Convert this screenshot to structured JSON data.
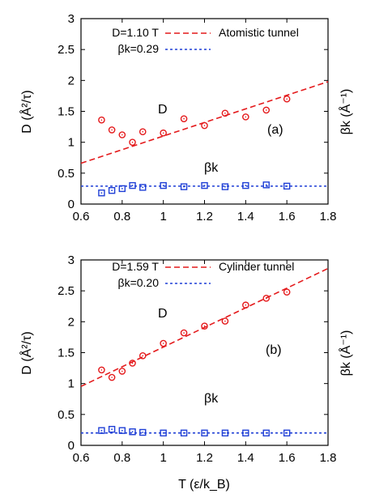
{
  "colors": {
    "red": "#e41a1c",
    "blue": "#1f3fd6",
    "axis": "#000000"
  },
  "chart_data": [
    {
      "type": "scatter",
      "panel_label": "(a)",
      "xlim": [
        0.6,
        1.8
      ],
      "ylim": [
        0,
        3
      ],
      "x_ticks": [
        "0.6",
        "0.8",
        "1",
        "1.2",
        "1.4",
        "1.6",
        "1.8"
      ],
      "y_ticks": [
        "0",
        "0.5",
        "1",
        "1.5",
        "2",
        "2.5",
        "3"
      ],
      "ylabel": "D (Å²/τ)",
      "y2label": "βk (Å⁻¹)",
      "xlabel": "",
      "grid": false,
      "legend_placement": "top",
      "annotations": {
        "D": "D",
        "beta_k": "βk"
      },
      "series": [
        {
          "name": "D",
          "marker": "circle",
          "color": "red",
          "x": [
            0.7,
            0.75,
            0.8,
            0.85,
            0.9,
            1.0,
            1.1,
            1.2,
            1.3,
            1.4,
            1.5,
            1.6
          ],
          "y": [
            1.36,
            1.2,
            1.12,
            1.0,
            1.17,
            1.15,
            1.38,
            1.27,
            1.47,
            1.41,
            1.52,
            1.7
          ]
        },
        {
          "name": "βk",
          "marker": "square",
          "color": "blue",
          "x": [
            0.7,
            0.75,
            0.8,
            0.85,
            0.9,
            1.0,
            1.1,
            1.2,
            1.3,
            1.4,
            1.5,
            1.6
          ],
          "y": [
            0.18,
            0.22,
            0.25,
            0.3,
            0.27,
            0.3,
            0.28,
            0.3,
            0.28,
            0.3,
            0.31,
            0.29
          ]
        }
      ],
      "fits": [
        {
          "label_left": "D=1.10 T",
          "label_right": "Atomistic tunnel",
          "slope": 1.1,
          "intercept": 0,
          "color": "red",
          "style": "dashed"
        },
        {
          "label_left": "βk=0.29",
          "label_right": "",
          "constant": 0.29,
          "color": "blue",
          "style": "dotted"
        }
      ]
    },
    {
      "type": "scatter",
      "panel_label": "(b)",
      "xlim": [
        0.6,
        1.8
      ],
      "ylim": [
        0,
        3
      ],
      "x_ticks": [
        "0.6",
        "0.8",
        "1",
        "1.2",
        "1.4",
        "1.6",
        "1.8"
      ],
      "y_ticks": [
        "0",
        "0.5",
        "1",
        "1.5",
        "2",
        "2.5",
        "3"
      ],
      "ylabel": "D (Å²/τ)",
      "y2label": "βk (Å⁻¹)",
      "xlabel": "T (ε/k_B)",
      "grid": false,
      "legend_placement": "top",
      "annotations": {
        "D": "D",
        "beta_k": "βk"
      },
      "series": [
        {
          "name": "D",
          "marker": "circle",
          "color": "red",
          "x": [
            0.7,
            0.75,
            0.8,
            0.85,
            0.9,
            1.0,
            1.1,
            1.2,
            1.3,
            1.4,
            1.5,
            1.6
          ],
          "y": [
            1.22,
            1.1,
            1.2,
            1.33,
            1.45,
            1.65,
            1.82,
            1.93,
            2.01,
            2.27,
            2.38,
            2.48
          ]
        },
        {
          "name": "βk",
          "marker": "square",
          "color": "blue",
          "x": [
            0.7,
            0.75,
            0.8,
            0.85,
            0.9,
            1.0,
            1.1,
            1.2,
            1.3,
            1.4,
            1.5,
            1.6
          ],
          "y": [
            0.24,
            0.26,
            0.24,
            0.22,
            0.21,
            0.2,
            0.2,
            0.2,
            0.2,
            0.2,
            0.2,
            0.2
          ]
        }
      ],
      "fits": [
        {
          "label_left": "D=1.59 T",
          "label_right": "Cylinder tunnel",
          "slope": 1.59,
          "intercept": 0,
          "color": "red",
          "style": "dashed"
        },
        {
          "label_left": "βk=0.20",
          "label_right": "",
          "constant": 0.2,
          "color": "blue",
          "style": "dotted"
        }
      ]
    }
  ]
}
